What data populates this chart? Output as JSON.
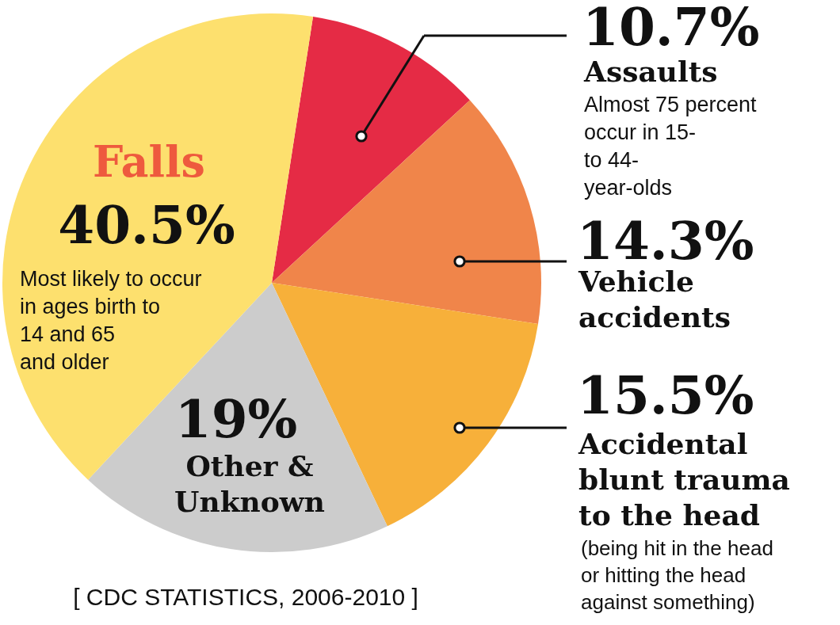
{
  "chart_data": {
    "type": "pie",
    "categories": [
      "Assaults",
      "Vehicle accidents",
      "Accidental blunt trauma to the head",
      "Other & Unknown",
      "Falls"
    ],
    "values": [
      10.7,
      14.3,
      15.5,
      19,
      40.5
    ],
    "colors": [
      "#e52b45",
      "#f0854a",
      "#f7b03a",
      "#cccccc",
      "#fde06e"
    ],
    "value_labels": [
      "10.7%",
      "14.3%",
      "15.5%",
      "19%",
      "40.5%"
    ],
    "annotations": [
      "Almost 75 percent occur in 15- to 44- year-olds",
      "(being hit in the head or hitting the head against something)",
      "Most likely to occur in ages birth to 14 and 65 and older",
      "[ CDC STATISTICS, 2006-2010 ]"
    ]
  }
}
